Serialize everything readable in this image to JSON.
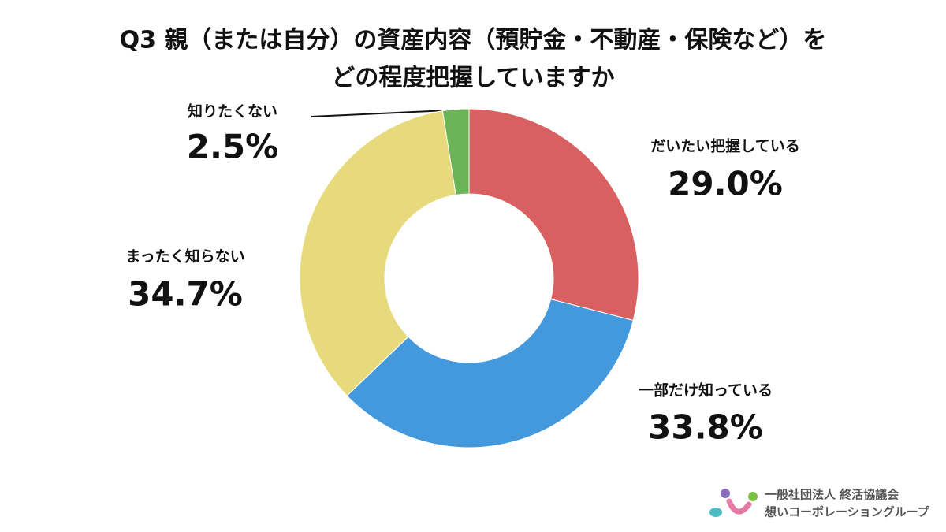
{
  "chart_data": {
    "type": "donut",
    "title": [
      "Q3 親（または自分）の資産内容（預貯金・不動産・保険など）を",
      "どの程度把握していますか"
    ],
    "categories": [
      "だいたい把握している",
      "一部だけ知っている",
      "まったく知らない",
      "知りたくない"
    ],
    "values": [
      29.0,
      33.8,
      34.7,
      2.5
    ],
    "value_labels": [
      "29.0%",
      "33.8%",
      "34.7%",
      "2.5%"
    ],
    "colors": [
      "#d86060",
      "#4499dc",
      "#e6da7c",
      "#6bb357"
    ],
    "footer": [
      "一般社団法人 終活協議会",
      "想いコーポレーショングループ"
    ]
  }
}
